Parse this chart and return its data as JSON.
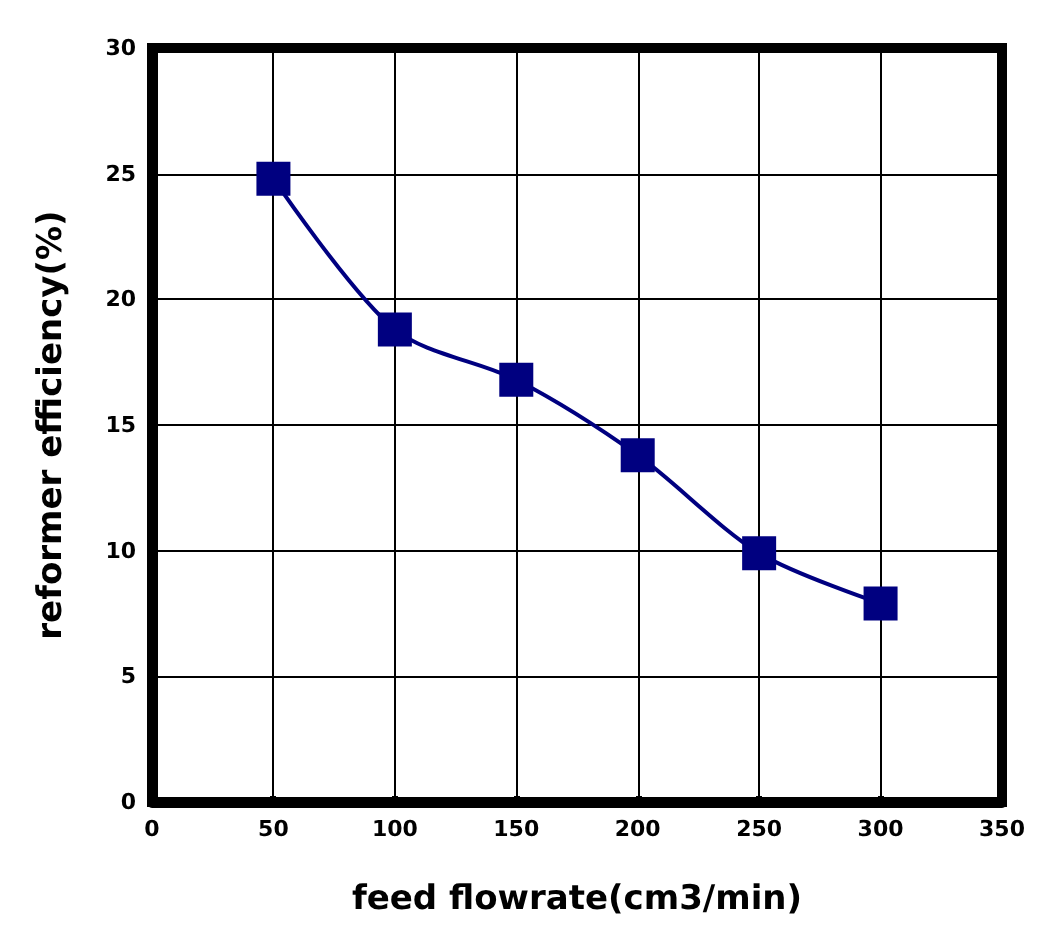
{
  "chart_data": {
    "type": "line",
    "xlabel": "feed flowrate(cm3/min)",
    "ylabel": "reformer efficiency(%)",
    "x": [
      50,
      100,
      150,
      200,
      250,
      300
    ],
    "series": [
      {
        "color": "#000080",
        "values": [
          24.8,
          18.8,
          16.8,
          13.8,
          9.9,
          7.9
        ]
      }
    ],
    "xlim": [
      0,
      350
    ],
    "xticks": [
      0,
      50,
      100,
      150,
      200,
      250,
      300,
      350
    ],
    "ylim": [
      0,
      30
    ],
    "yticks": [
      0,
      5,
      10,
      15,
      20,
      25,
      30
    ],
    "grid": true,
    "marker": "square",
    "line_style": "solid"
  }
}
